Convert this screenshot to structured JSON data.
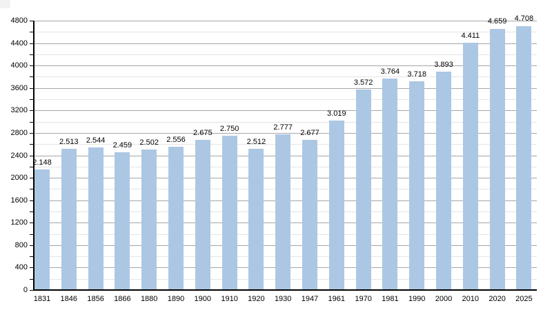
{
  "chart_data": {
    "type": "bar",
    "title": "",
    "xlabel": "",
    "ylabel": "",
    "categories": [
      "1831",
      "1846",
      "1856",
      "1866",
      "1880",
      "1890",
      "1900",
      "1910",
      "1920",
      "1930",
      "1947",
      "1961",
      "1970",
      "1981",
      "1990",
      "2000",
      "2010",
      "2020",
      "2025"
    ],
    "values": [
      2148,
      2513,
      2544,
      2459,
      2502,
      2556,
      2675,
      2750,
      2512,
      2777,
      2677,
      3019,
      3572,
      3764,
      3718,
      3893,
      4411,
      4659,
      4708
    ],
    "value_labels": [
      "2.148",
      "2.513",
      "2.544",
      "2.459",
      "2.502",
      "2.556",
      "2.675",
      "2.750",
      "2.512",
      "2.777",
      "2.677",
      "3.019",
      "3.572",
      "3.764",
      "3.718",
      "3.893",
      "4.411",
      "4.659",
      "4.708"
    ],
    "ylim": [
      0,
      4800
    ],
    "y_major_step": 400,
    "y_minor_step": 200,
    "y_tick_labels": [
      "0",
      "400",
      "800",
      "1200",
      "1600",
      "2000",
      "2400",
      "2800",
      "3200",
      "3600",
      "4000",
      "4400",
      "4800"
    ],
    "grid": true,
    "legend": "none",
    "colors": {
      "bar": "#acc7e3",
      "major_grid": "#a5a5a5",
      "minor_grid": "#e4e4e4",
      "axis": "#000000",
      "text": "#000000",
      "background": "#ffffff"
    }
  }
}
